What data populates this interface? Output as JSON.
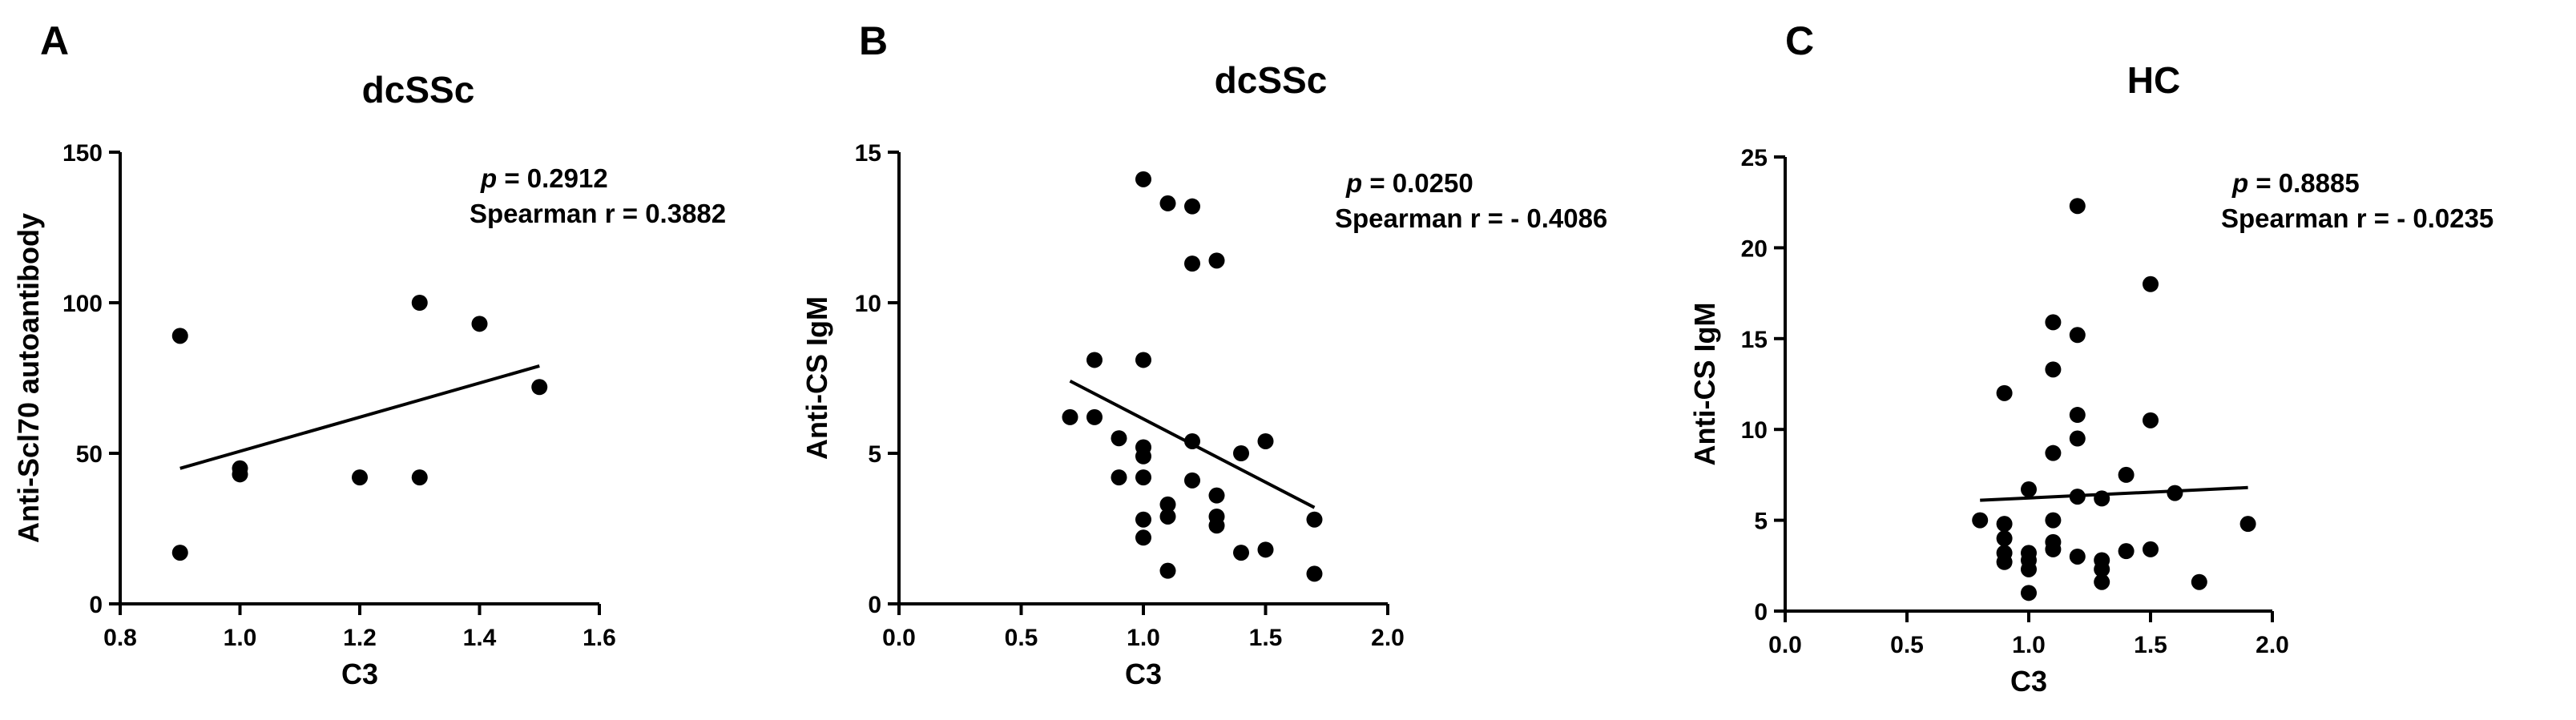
{
  "chart_data": [
    {
      "panel": "A",
      "type": "scatter",
      "title": "dcSSc",
      "xlabel": "C3",
      "ylabel": "Anti-Scl70 autoantibody",
      "xlim": [
        0.8,
        1.6
      ],
      "ylim": [
        0,
        150
      ],
      "xticks": [
        0.8,
        1.0,
        1.2,
        1.4,
        1.6
      ],
      "xtick_labels": [
        "0.8",
        "1.0",
        "1.2",
        "1.4",
        "1.6"
      ],
      "yticks": [
        0,
        50,
        100,
        150
      ],
      "ytick_labels": [
        "0",
        "50",
        "100",
        "150"
      ],
      "annotation": {
        "p_symbol": "p",
        "p_text": " = 0.2912",
        "r_text": "Spearman r = 0.3882"
      },
      "points": [
        {
          "x": 0.9,
          "y": 89
        },
        {
          "x": 0.9,
          "y": 17
        },
        {
          "x": 1.0,
          "y": 45
        },
        {
          "x": 1.0,
          "y": 43
        },
        {
          "x": 1.2,
          "y": 42
        },
        {
          "x": 1.3,
          "y": 100
        },
        {
          "x": 1.3,
          "y": 42
        },
        {
          "x": 1.4,
          "y": 93
        },
        {
          "x": 1.5,
          "y": 72
        }
      ],
      "fit_line": [
        {
          "x": 0.9,
          "y": 45
        },
        {
          "x": 1.5,
          "y": 79
        }
      ]
    },
    {
      "panel": "B",
      "type": "scatter",
      "title": "dcSSc",
      "xlabel": "C3",
      "ylabel": "Anti-CS IgM",
      "xlim": [
        0.0,
        2.0
      ],
      "ylim": [
        0,
        15
      ],
      "xticks": [
        0.0,
        0.5,
        1.0,
        1.5,
        2.0
      ],
      "xtick_labels": [
        "0.0",
        "0.5",
        "1.0",
        "1.5",
        "2.0"
      ],
      "yticks": [
        0,
        5,
        10,
        15
      ],
      "ytick_labels": [
        "0",
        "5",
        "10",
        "15"
      ],
      "annotation": {
        "p_symbol": "p",
        "p_text": " = 0.0250",
        "r_text": "Spearman r = - 0.4086"
      },
      "points": [
        {
          "x": 0.7,
          "y": 6.2
        },
        {
          "x": 0.8,
          "y": 8.1
        },
        {
          "x": 0.8,
          "y": 6.2
        },
        {
          "x": 0.9,
          "y": 5.5
        },
        {
          "x": 0.9,
          "y": 4.2
        },
        {
          "x": 1.0,
          "y": 14.1
        },
        {
          "x": 1.0,
          "y": 8.1
        },
        {
          "x": 1.0,
          "y": 5.2
        },
        {
          "x": 1.0,
          "y": 4.9
        },
        {
          "x": 1.0,
          "y": 4.2
        },
        {
          "x": 1.0,
          "y": 2.8
        },
        {
          "x": 1.0,
          "y": 2.2
        },
        {
          "x": 1.1,
          "y": 13.3
        },
        {
          "x": 1.1,
          "y": 3.3
        },
        {
          "x": 1.1,
          "y": 2.9
        },
        {
          "x": 1.1,
          "y": 1.1
        },
        {
          "x": 1.2,
          "y": 13.2
        },
        {
          "x": 1.2,
          "y": 11.3
        },
        {
          "x": 1.2,
          "y": 5.4
        },
        {
          "x": 1.2,
          "y": 4.1
        },
        {
          "x": 1.3,
          "y": 11.4
        },
        {
          "x": 1.3,
          "y": 3.6
        },
        {
          "x": 1.3,
          "y": 2.9
        },
        {
          "x": 1.3,
          "y": 2.6
        },
        {
          "x": 1.4,
          "y": 5.0
        },
        {
          "x": 1.4,
          "y": 1.7
        },
        {
          "x": 1.5,
          "y": 5.4
        },
        {
          "x": 1.5,
          "y": 1.8
        },
        {
          "x": 1.7,
          "y": 2.8
        },
        {
          "x": 1.7,
          "y": 1.0
        }
      ],
      "fit_line": [
        {
          "x": 0.7,
          "y": 7.4
        },
        {
          "x": 1.7,
          "y": 3.2
        }
      ]
    },
    {
      "panel": "C",
      "type": "scatter",
      "title": "HC",
      "xlabel": "C3",
      "ylabel": "Anti-CS IgM",
      "xlim": [
        0.0,
        2.0
      ],
      "ylim": [
        0,
        25
      ],
      "xticks": [
        0.0,
        0.5,
        1.0,
        1.5,
        2.0
      ],
      "xtick_labels": [
        "0.0",
        "0.5",
        "1.0",
        "1.5",
        "2.0"
      ],
      "yticks": [
        0,
        5,
        10,
        15,
        20,
        25
      ],
      "ytick_labels": [
        "0",
        "5",
        "10",
        "15",
        "20",
        "25"
      ],
      "annotation": {
        "p_symbol": "p",
        "p_text": " = 0.8885",
        "r_text": "Spearman r = - 0.0235"
      },
      "points": [
        {
          "x": 0.8,
          "y": 5.0
        },
        {
          "x": 0.9,
          "y": 12.0
        },
        {
          "x": 0.9,
          "y": 4.8
        },
        {
          "x": 0.9,
          "y": 4.0
        },
        {
          "x": 0.9,
          "y": 3.2
        },
        {
          "x": 0.9,
          "y": 2.7
        },
        {
          "x": 1.0,
          "y": 6.7
        },
        {
          "x": 1.0,
          "y": 3.2
        },
        {
          "x": 1.0,
          "y": 2.8
        },
        {
          "x": 1.0,
          "y": 2.3
        },
        {
          "x": 1.0,
          "y": 1.0
        },
        {
          "x": 1.1,
          "y": 15.9
        },
        {
          "x": 1.1,
          "y": 13.3
        },
        {
          "x": 1.1,
          "y": 8.7
        },
        {
          "x": 1.1,
          "y": 5.0
        },
        {
          "x": 1.1,
          "y": 3.8
        },
        {
          "x": 1.1,
          "y": 3.4
        },
        {
          "x": 1.2,
          "y": 22.3
        },
        {
          "x": 1.2,
          "y": 15.2
        },
        {
          "x": 1.2,
          "y": 10.8
        },
        {
          "x": 1.2,
          "y": 9.5
        },
        {
          "x": 1.2,
          "y": 6.3
        },
        {
          "x": 1.2,
          "y": 3.0
        },
        {
          "x": 1.3,
          "y": 6.2
        },
        {
          "x": 1.3,
          "y": 2.8
        },
        {
          "x": 1.3,
          "y": 2.3
        },
        {
          "x": 1.3,
          "y": 1.6
        },
        {
          "x": 1.4,
          "y": 7.5
        },
        {
          "x": 1.4,
          "y": 3.3
        },
        {
          "x": 1.5,
          "y": 18.0
        },
        {
          "x": 1.5,
          "y": 10.5
        },
        {
          "x": 1.5,
          "y": 3.4
        },
        {
          "x": 1.6,
          "y": 6.5
        },
        {
          "x": 1.7,
          "y": 1.6
        },
        {
          "x": 1.9,
          "y": 4.8
        }
      ],
      "fit_line": [
        {
          "x": 0.8,
          "y": 6.1
        },
        {
          "x": 1.9,
          "y": 6.8
        }
      ]
    }
  ]
}
